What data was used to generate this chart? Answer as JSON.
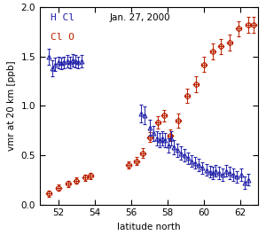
{
  "title": "Jan. 27, 2000",
  "xlabel": "latitude north",
  "ylabel": "vmr at 20 km [ppb]",
  "xlim": [
    51.0,
    63.0
  ],
  "ylim": [
    0.0,
    2.0
  ],
  "xticks": [
    52,
    54,
    56,
    58,
    60,
    62
  ],
  "yticks": [
    0.0,
    0.5,
    1.0,
    1.5,
    2.0
  ],
  "hcl_color": "#2222aa",
  "clo_color": "#bb2200",
  "legend_hcl": "H Cl",
  "legend_clo": "Cl O",
  "hcl_data": {
    "x": [
      51.5,
      51.7,
      51.85,
      52.0,
      52.15,
      52.3,
      52.5,
      52.65,
      52.8,
      52.95,
      53.1,
      53.3,
      56.55,
      56.75,
      57.05,
      57.25,
      57.45,
      57.6,
      57.75,
      57.9,
      58.05,
      58.2,
      58.35,
      58.55,
      58.75,
      58.95,
      59.15,
      59.35,
      59.55,
      59.75,
      59.95,
      60.15,
      60.35,
      60.5,
      60.65,
      60.85,
      61.05,
      61.25,
      61.45,
      61.65,
      61.85,
      62.05,
      62.25,
      62.45
    ],
    "y": [
      1.5,
      1.38,
      1.42,
      1.44,
      1.43,
      1.44,
      1.45,
      1.44,
      1.46,
      1.45,
      1.44,
      1.45,
      0.92,
      0.9,
      0.78,
      0.72,
      0.67,
      0.65,
      0.67,
      0.65,
      0.6,
      0.67,
      0.58,
      0.55,
      0.52,
      0.5,
      0.47,
      0.44,
      0.42,
      0.4,
      0.37,
      0.35,
      0.33,
      0.32,
      0.34,
      0.32,
      0.3,
      0.34,
      0.32,
      0.3,
      0.28,
      0.3,
      0.22,
      0.25
    ],
    "yerr": [
      0.08,
      0.08,
      0.07,
      0.06,
      0.06,
      0.06,
      0.06,
      0.06,
      0.06,
      0.06,
      0.06,
      0.06,
      0.09,
      0.09,
      0.08,
      0.08,
      0.07,
      0.07,
      0.07,
      0.07,
      0.07,
      0.07,
      0.07,
      0.07,
      0.07,
      0.06,
      0.06,
      0.06,
      0.06,
      0.06,
      0.06,
      0.06,
      0.06,
      0.06,
      0.06,
      0.06,
      0.06,
      0.06,
      0.06,
      0.06,
      0.06,
      0.06,
      0.06,
      0.06
    ]
  },
  "clo_data": {
    "x": [
      51.5,
      52.0,
      52.55,
      53.0,
      53.5,
      53.8,
      55.9,
      56.3,
      56.65,
      57.05,
      57.5,
      57.85,
      58.15,
      58.6,
      59.1,
      59.6,
      60.0,
      60.5,
      60.95,
      61.45,
      61.95,
      62.45,
      62.75
    ],
    "y": [
      0.11,
      0.17,
      0.21,
      0.24,
      0.27,
      0.29,
      0.4,
      0.44,
      0.52,
      0.68,
      0.83,
      0.9,
      0.7,
      0.85,
      1.1,
      1.22,
      1.42,
      1.55,
      1.6,
      1.64,
      1.78,
      1.82,
      1.82
    ],
    "xerr": [
      0.12,
      0.12,
      0.12,
      0.12,
      0.12,
      0.12,
      0.12,
      0.12,
      0.12,
      0.12,
      0.12,
      0.12,
      0.12,
      0.12,
      0.12,
      0.12,
      0.12,
      0.12,
      0.12,
      0.12,
      0.12,
      0.12,
      0.12
    ],
    "yerr": [
      0.03,
      0.03,
      0.03,
      0.03,
      0.03,
      0.03,
      0.04,
      0.04,
      0.05,
      0.05,
      0.06,
      0.06,
      0.06,
      0.07,
      0.07,
      0.08,
      0.08,
      0.08,
      0.08,
      0.08,
      0.08,
      0.08,
      0.08
    ]
  }
}
